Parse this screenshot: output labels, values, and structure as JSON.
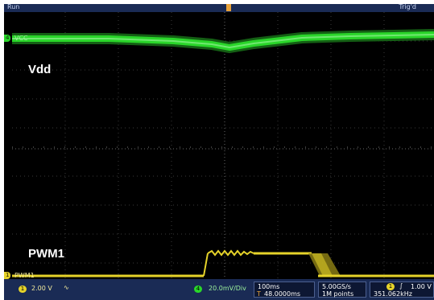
{
  "top_bar": {
    "status": "Run",
    "trigger_status": "Trig'd",
    "trigger_position_marker": "T"
  },
  "channels": {
    "ch1": {
      "marker": "1",
      "label": "PWM1",
      "scale": "2.00 V",
      "coupling_symbol": "∿",
      "color": "#e6d32a"
    },
    "ch4": {
      "marker": "4",
      "label": "VCC",
      "scale": "20.0mV/Div",
      "color": "#2ad62a"
    }
  },
  "annotations": {
    "vdd": "Vdd",
    "pwm": "PWM1"
  },
  "timebase": {
    "scale": "100ms",
    "position": "48.0000ms",
    "position_marker": "T"
  },
  "acquisition": {
    "sample_rate": "5.00GS/s",
    "record_length": "1M points"
  },
  "trigger": {
    "source": "1",
    "slope_symbol": "∫",
    "level": "1.00 V",
    "frequency": "351.062kHz"
  },
  "colors": {
    "frame": "#1a2b55",
    "screen": "#000000",
    "grid": "#3a3a3a",
    "ch1": "#e6d32a",
    "ch4": "#2ad62a",
    "trigger_marker": "#e7a23a"
  }
}
